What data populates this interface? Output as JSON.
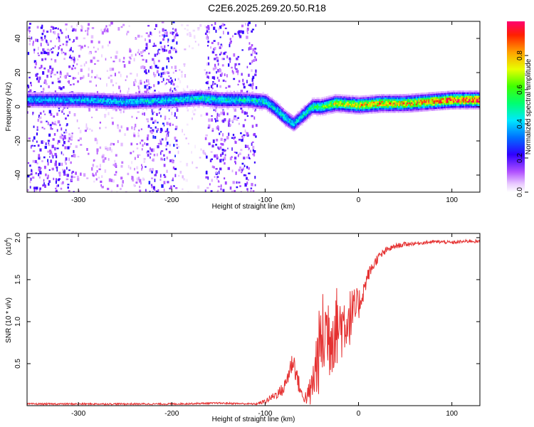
{
  "title": "C2E6.2025.269.20.50.R18",
  "colors": {
    "background": "#ffffff",
    "axis": "#000000",
    "snr_line": "#e53030",
    "spec_bg": "#ffffff"
  },
  "chart_data": [
    {
      "id": "spectrogram",
      "type": "heatmap",
      "xlabel": "Height of straight line (km)",
      "ylabel": "Frequency (Hz)",
      "xlim": [
        -355,
        130
      ],
      "ylim": [
        -50,
        50
      ],
      "x_ticks": [
        -300,
        -200,
        -100,
        0,
        100
      ],
      "y_ticks": [
        -40,
        -20,
        0,
        20,
        40
      ],
      "grid": false,
      "colorbar": {
        "label": "Normalized spectral amplitude",
        "range": [
          0.0,
          1.0
        ],
        "ticks": [
          "0.0",
          "0.2",
          "0.4",
          "0.6",
          "0.8"
        ],
        "colormap": "rainbow (magenta-blue-cyan-green-yellow-red)"
      },
      "ridge": [
        {
          "x": -355,
          "f": 4,
          "amp": 0.35
        },
        {
          "x": -300,
          "f": 4,
          "amp": 0.38
        },
        {
          "x": -250,
          "f": 3,
          "amp": 0.4
        },
        {
          "x": -200,
          "f": 4,
          "amp": 0.42
        },
        {
          "x": -170,
          "f": 5,
          "amp": 0.45
        },
        {
          "x": -150,
          "f": 4,
          "amp": 0.45
        },
        {
          "x": -120,
          "f": 4,
          "amp": 0.42
        },
        {
          "x": -100,
          "f": 3,
          "amp": 0.45
        },
        {
          "x": -90,
          "f": -1,
          "amp": 0.45
        },
        {
          "x": -80,
          "f": -6,
          "amp": 0.45
        },
        {
          "x": -70,
          "f": -10,
          "amp": 0.4
        },
        {
          "x": -60,
          "f": -5,
          "amp": 0.45
        },
        {
          "x": -50,
          "f": 0,
          "amp": 0.5
        },
        {
          "x": -40,
          "f": 0,
          "amp": 0.55
        },
        {
          "x": -25,
          "f": 2,
          "amp": 0.7
        },
        {
          "x": 0,
          "f": 1,
          "amp": 0.75
        },
        {
          "x": 25,
          "f": 2,
          "amp": 0.8
        },
        {
          "x": 50,
          "f": 2,
          "amp": 0.78
        },
        {
          "x": 75,
          "f": 3,
          "amp": 0.85
        },
        {
          "x": 100,
          "f": 4,
          "amp": 0.9
        },
        {
          "x": 130,
          "f": 4,
          "amp": 0.92
        }
      ],
      "noise_regions": [
        {
          "x_range": [
            -355,
            -305
          ],
          "amp": 0.18
        },
        {
          "x_range": [
            -305,
            -230
          ],
          "amp": 0.1
        },
        {
          "x_range": [
            -230,
            -195
          ],
          "amp": 0.2
        },
        {
          "x_range": [
            -195,
            -165
          ],
          "amp": 0.05
        },
        {
          "x_range": [
            -165,
            -110
          ],
          "amp": 0.18
        }
      ]
    },
    {
      "id": "snr",
      "type": "line",
      "xlabel": "Height of straight line (km)",
      "ylabel": "SNR (10 * v/v)",
      "y_multiplier_base": "(x10",
      "y_multiplier_exp": "4",
      "y_multiplier_close": ")",
      "xlim": [
        -355,
        130
      ],
      "ylim": [
        0.0,
        2.05
      ],
      "x_ticks": [
        -300,
        -200,
        -100,
        0,
        100
      ],
      "y_ticks": [
        0.5,
        1.0,
        1.5,
        2.0
      ],
      "grid": false,
      "series": [
        {
          "x": [
            -355,
            -300,
            -250,
            -200,
            -150,
            -110,
            -100,
            -90,
            -80,
            -70,
            -65,
            -60,
            -55,
            -50,
            -45,
            -40,
            -35,
            -30,
            -25,
            -20,
            -15,
            -10,
            -5,
            0,
            5,
            10,
            20,
            30,
            40,
            50,
            60,
            70,
            80,
            90,
            100,
            110,
            120,
            130
          ],
          "values": [
            0.02,
            0.02,
            0.02,
            0.02,
            0.03,
            0.02,
            0.05,
            0.12,
            0.2,
            0.55,
            0.3,
            0.1,
            0.1,
            0.2,
            0.5,
            0.75,
            0.9,
            0.85,
            0.95,
            0.95,
            1.0,
            1.05,
            1.1,
            1.2,
            1.35,
            1.55,
            1.75,
            1.85,
            1.9,
            1.92,
            1.93,
            1.94,
            1.95,
            1.95,
            1.94,
            1.95,
            1.96,
            1.95
          ],
          "noise_env": [
            0.01,
            0.01,
            0.01,
            0.01,
            0.01,
            0.01,
            0.03,
            0.05,
            0.08,
            0.15,
            0.12,
            0.05,
            0.1,
            0.25,
            0.45,
            0.55,
            0.6,
            0.55,
            0.5,
            0.45,
            0.4,
            0.35,
            0.3,
            0.2,
            0.12,
            0.08,
            0.06,
            0.04,
            0.03,
            0.03,
            0.02,
            0.02,
            0.02,
            0.02,
            0.02,
            0.02,
            0.02,
            0.02
          ]
        }
      ]
    }
  ]
}
